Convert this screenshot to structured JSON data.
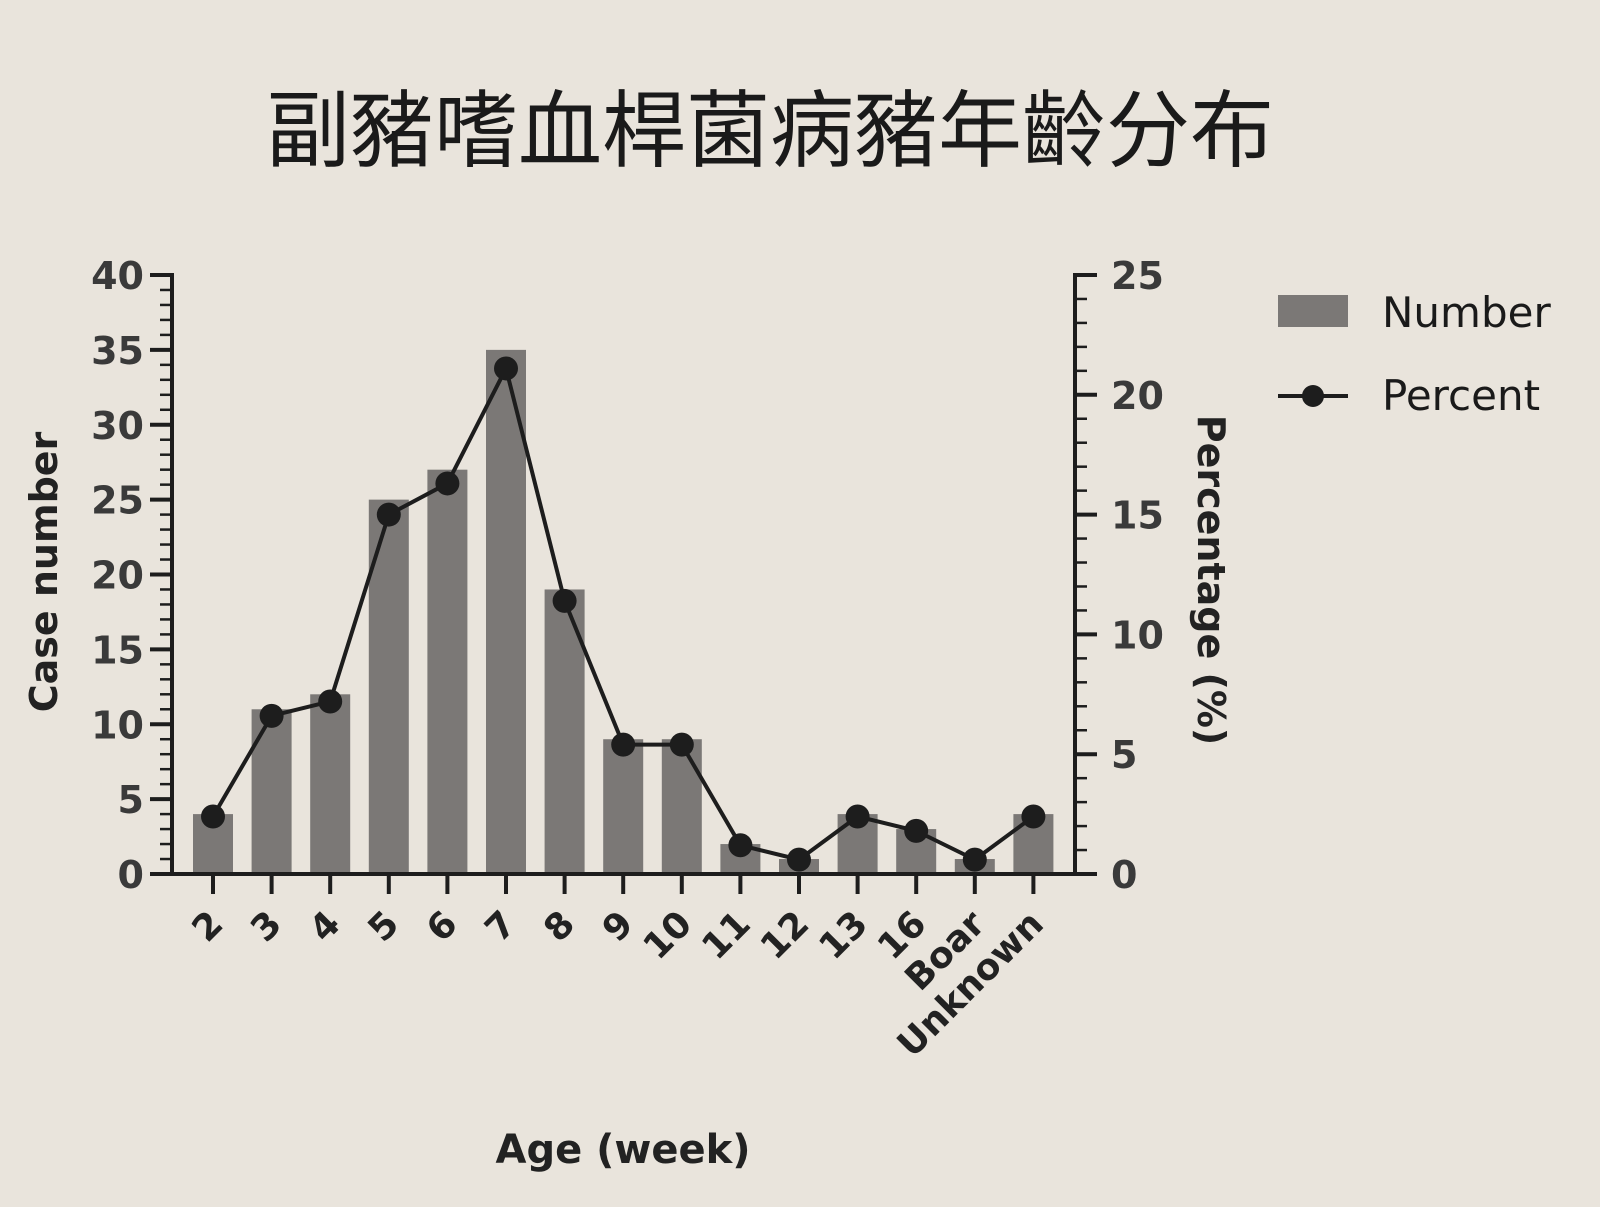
{
  "chart_data": {
    "type": "bar",
    "title": "副豬嗜血桿菌病豬年齡分布",
    "xlabel": "Age (week)",
    "ylabel": "Case number",
    "y2label": "Percentage (%)",
    "categories": [
      "2",
      "3",
      "4",
      "5",
      "6",
      "7",
      "8",
      "9",
      "10",
      "11",
      "12",
      "13",
      "16",
      "Boar",
      "Unknown"
    ],
    "series": [
      {
        "name": "Number",
        "type": "bar",
        "axis": "left",
        "values": [
          4,
          11,
          12,
          25,
          27,
          35,
          19,
          9,
          9,
          2,
          1,
          4,
          3,
          1,
          4
        ]
      },
      {
        "name": "Percent",
        "type": "line",
        "axis": "right",
        "values": [
          2.4,
          6.6,
          7.2,
          15.0,
          16.3,
          21.1,
          11.4,
          5.4,
          5.4,
          1.2,
          0.6,
          2.4,
          1.8,
          0.6,
          2.4
        ]
      }
    ],
    "ylim": [
      0,
      40
    ],
    "y2lim": [
      0,
      25
    ],
    "yticks": [
      "0",
      "5",
      "10",
      "15",
      "20",
      "25",
      "30",
      "35",
      "40"
    ],
    "y2ticks": [
      "0",
      "5",
      "10",
      "15",
      "20",
      "25"
    ],
    "grid": false,
    "legend": "top-right",
    "colors": {
      "bar": "#7b7876",
      "line": "#1d1d1d",
      "axis": "#1d1d1d",
      "text": "#222222",
      "background": "#e9e4dc"
    }
  }
}
